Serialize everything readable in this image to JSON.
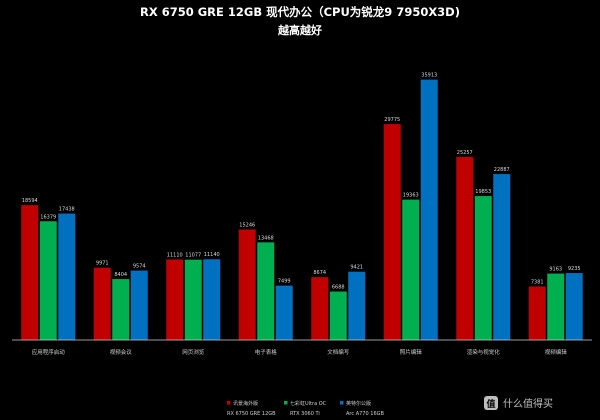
{
  "chart_data": {
    "type": "bar",
    "title": "RX 6750 GRE 12GB 现代办公（CPU为锐龙9 7950X3D)",
    "subtitle": "越高越好",
    "categories": [
      "应用程序启动",
      "视频会议",
      "网页浏览",
      "电子表格",
      "文档编写",
      "照片编辑",
      "渲染与视觉化",
      "视频编辑"
    ],
    "series": [
      {
        "name": "讯景海外版",
        "name_line2": "RX 6750 GRE 12GB",
        "color": "#c00000",
        "values": [
          18594,
          9971,
          11110,
          15246,
          8674,
          29775,
          25257,
          7381
        ]
      },
      {
        "name": "七彩虹Ultra OC",
        "name_line2": "RTX 3060 Ti",
        "color": "#00b050",
        "values": [
          16379,
          8404,
          11077,
          13468,
          6688,
          19363,
          19853,
          9163
        ]
      },
      {
        "name": "英特尔公版",
        "name_line2": "Arc A770 16GB",
        "color": "#0070c0",
        "values": [
          17438,
          9574,
          11140,
          7499,
          9421,
          35913,
          22887,
          9235
        ]
      }
    ],
    "ylim": [
      0,
      40000
    ],
    "grid": false,
    "legend_position": "bottom"
  },
  "watermark": "值 什么值得买"
}
